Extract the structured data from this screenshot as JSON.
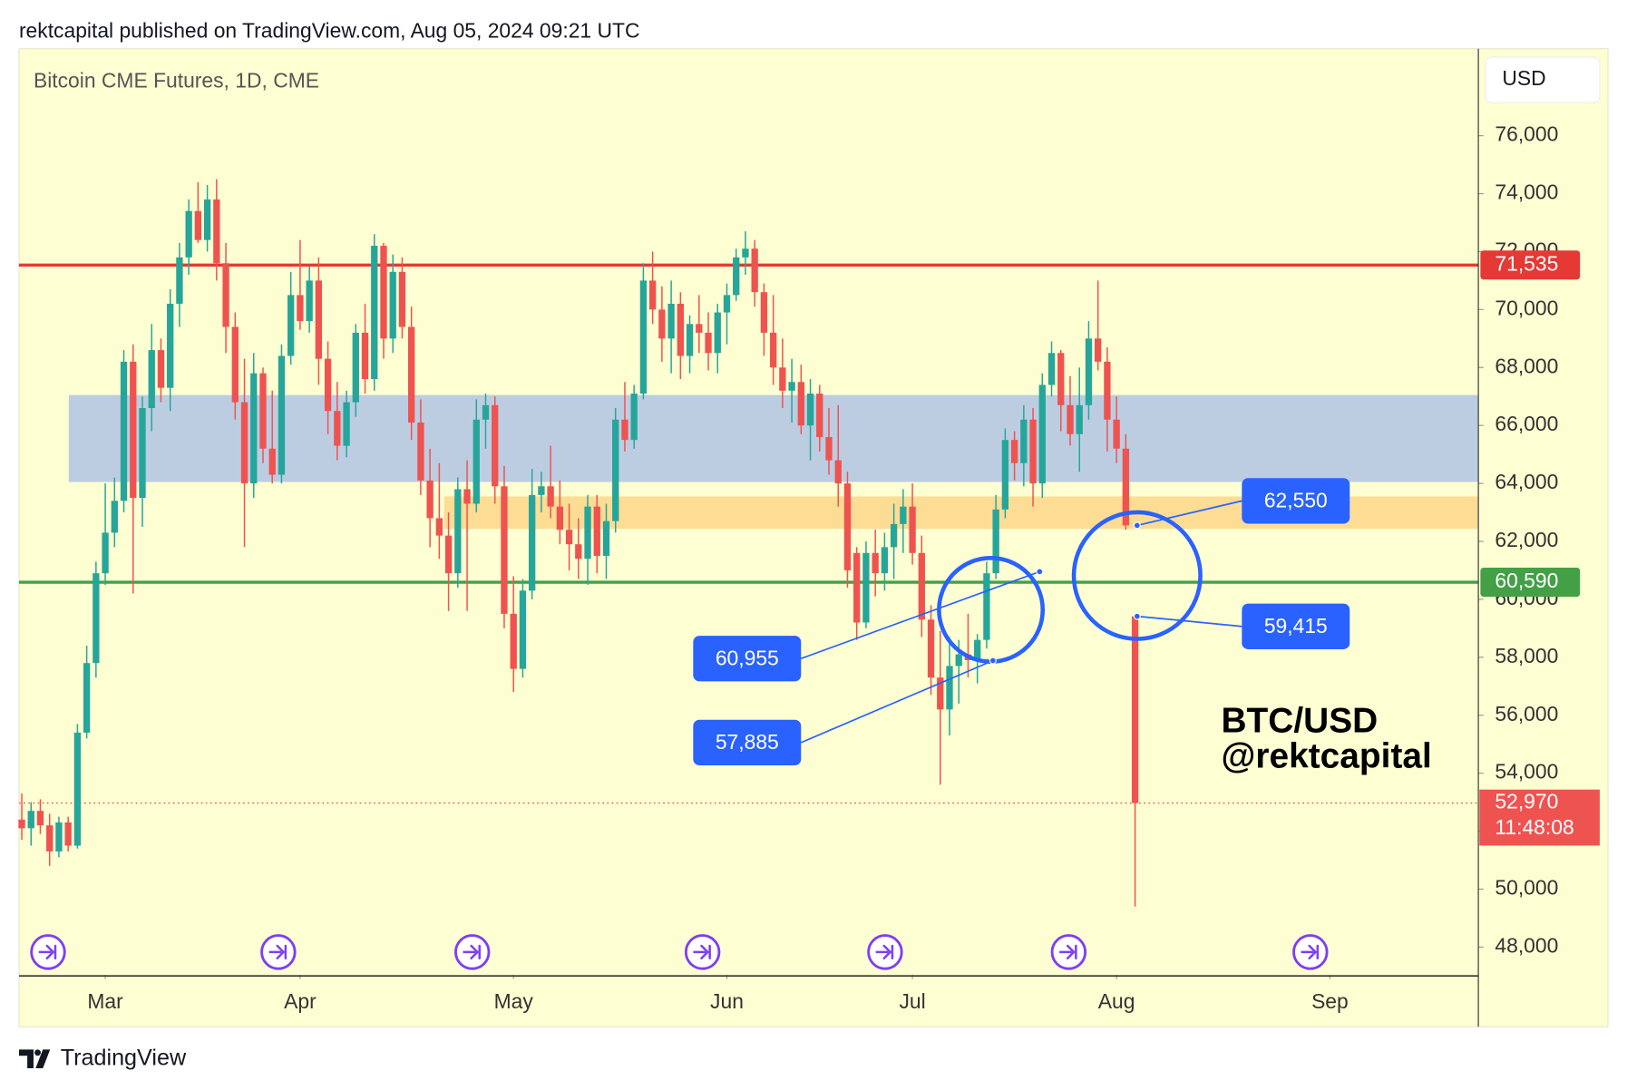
{
  "header": {
    "byline": "rektcapital published on TradingView.com, Aug 05, 2024 09:21 UTC"
  },
  "chart_data": {
    "type": "candlestick",
    "title": "Bitcoin CME Futures, 1D, CME",
    "currency": "USD",
    "x": [
      0,
      1,
      2,
      3,
      4,
      5,
      6,
      7,
      8,
      9,
      10,
      11,
      12,
      13,
      14,
      15,
      16,
      17,
      18,
      19,
      20,
      21,
      22,
      23,
      24,
      25,
      26,
      27,
      28,
      29,
      30,
      31,
      32,
      33,
      34,
      35,
      36,
      37,
      38,
      39,
      40,
      41,
      42,
      43,
      44,
      45,
      46,
      47,
      48,
      49,
      50,
      51,
      52,
      53,
      54,
      55,
      56,
      57,
      58,
      59,
      60,
      61,
      62,
      63,
      64,
      65,
      66,
      67,
      68,
      69,
      70,
      71,
      72,
      73,
      74,
      75,
      76,
      77,
      78,
      79,
      80,
      81,
      82,
      83,
      84,
      85,
      86,
      87,
      88,
      89,
      90,
      91,
      92,
      93,
      94,
      95,
      96,
      97,
      98,
      99,
      100,
      101,
      102,
      103,
      104,
      105,
      106,
      107,
      108,
      109,
      110,
      111,
      112,
      113,
      114,
      115,
      116,
      117,
      118,
      119,
      120
    ],
    "open": [
      52400,
      52100,
      52700,
      52200,
      51300,
      52300,
      51500,
      55400,
      57800,
      60900,
      62300,
      63400,
      68200,
      63500,
      66600,
      68600,
      67300,
      70200,
      71800,
      73400,
      72400,
      73800,
      71600,
      69400,
      66800,
      64000,
      67800,
      65200,
      64300,
      68400,
      70500,
      69600,
      71000,
      68300,
      66500,
      65300,
      66800,
      69200,
      67600,
      72200,
      69000,
      71300,
      69400,
      66100,
      64100,
      62800,
      62200,
      60900,
      63800,
      63300,
      66200,
      66700,
      63900,
      59500,
      57600,
      60300,
      63600,
      63900,
      63200,
      62400,
      61900,
      61400,
      63200,
      61500,
      62700,
      66200,
      65500,
      67100,
      71000,
      70000,
      69000,
      70200,
      68400,
      69500,
      69200,
      68500,
      69900,
      70500,
      71800,
      72100,
      70600,
      69200,
      68000,
      67200,
      67500,
      66000,
      67100,
      65600,
      64800,
      64000,
      61600,
      59200,
      61600,
      60900,
      61800,
      62600,
      63200,
      61600,
      59300,
      57300,
      56200,
      57700,
      58100,
      57900,
      58600,
      60900,
      63100,
      65500,
      64700,
      66200,
      64000,
      67400,
      68500,
      66700,
      65700,
      66700,
      69000,
      68200,
      66200,
      65200,
      59415
    ],
    "high": [
      53300,
      53000,
      53100,
      52600,
      52500,
      52500,
      55700,
      58400,
      61300,
      64000,
      64200,
      68600,
      68800,
      67000,
      69500,
      69000,
      70700,
      72300,
      73800,
      74400,
      74300,
      74500,
      72300,
      69900,
      68300,
      68500,
      68000,
      67200,
      68800,
      71300,
      72400,
      71500,
      71800,
      68900,
      67500,
      67200,
      69500,
      70200,
      72600,
      72300,
      71900,
      71800,
      70100,
      66900,
      65200,
      64700,
      63000,
      64200,
      64800,
      66900,
      67100,
      67000,
      64600,
      60800,
      60700,
      64500,
      64400,
      65300,
      64100,
      63300,
      62800,
      63600,
      63600,
      63300,
      66600,
      67500,
      67400,
      71600,
      72000,
      70800,
      71000,
      70600,
      69800,
      70500,
      69900,
      70200,
      70900,
      72100,
      72700,
      72400,
      70900,
      70500,
      69000,
      68300,
      68100,
      67600,
      67400,
      66600,
      66700,
      64400,
      61800,
      62000,
      62400,
      62300,
      63300,
      63800,
      64000,
      62200,
      59800,
      58900,
      58700,
      58600,
      59500,
      58800,
      61300,
      63600,
      65900,
      65800,
      66700,
      66600,
      67800,
      68900,
      68600,
      67700,
      68000,
      69600,
      71000,
      68700,
      67000,
      65700,
      59415
    ],
    "low": [
      51700,
      51500,
      51900,
      50800,
      51100,
      51300,
      51400,
      55200,
      57300,
      60500,
      61800,
      63000,
      60200,
      62500,
      65800,
      66800,
      66500,
      69400,
      71200,
      72300,
      72000,
      71000,
      68500,
      66200,
      61800,
      63500,
      64700,
      64000,
      64000,
      68100,
      69300,
      69200,
      67400,
      65700,
      64800,
      64900,
      66300,
      67100,
      67200,
      68300,
      68500,
      69000,
      65500,
      63600,
      61800,
      61400,
      59600,
      60400,
      59600,
      63000,
      65200,
      63300,
      59000,
      56800,
      57300,
      60000,
      63000,
      62800,
      61900,
      61000,
      60700,
      60500,
      60900,
      60700,
      62300,
      65100,
      65200,
      66900,
      69500,
      68200,
      67800,
      67600,
      67800,
      68500,
      67900,
      67800,
      68800,
      70300,
      71200,
      70100,
      68400,
      67400,
      66600,
      66100,
      65700,
      64800,
      65100,
      64300,
      63200,
      60400,
      58600,
      59000,
      60100,
      60300,
      60700,
      61600,
      61200,
      58700,
      56700,
      53600,
      55300,
      56400,
      57300,
      57100,
      58300,
      60700,
      62800,
      64100,
      63900,
      63200,
      63500,
      67000,
      65800,
      65300,
      64400,
      66200,
      67900,
      65100,
      64700,
      62400,
      49400
    ],
    "close": [
      52100,
      52700,
      52200,
      51300,
      52300,
      51500,
      55400,
      57800,
      60900,
      62300,
      63400,
      68200,
      63500,
      66600,
      68600,
      67300,
      70200,
      71800,
      73400,
      72400,
      73800,
      71600,
      69400,
      66800,
      64000,
      67800,
      65200,
      64300,
      68400,
      70500,
      69600,
      71000,
      68300,
      66500,
      65300,
      66800,
      69200,
      67600,
      72200,
      69000,
      71300,
      69400,
      66100,
      64100,
      62800,
      62200,
      60900,
      63800,
      63300,
      66200,
      66700,
      63900,
      59500,
      57600,
      60300,
      63600,
      63900,
      63200,
      62400,
      61900,
      61400,
      63200,
      61500,
      62700,
      66200,
      65500,
      67100,
      71000,
      70000,
      69000,
      70200,
      68400,
      69500,
      69200,
      68500,
      69900,
      70500,
      71800,
      72100,
      70600,
      69200,
      68000,
      67200,
      67500,
      66000,
      67100,
      65600,
      64800,
      64000,
      61000,
      59200,
      61600,
      60900,
      61800,
      62600,
      63200,
      61600,
      59300,
      57300,
      56200,
      57700,
      58100,
      57900,
      58600,
      60900,
      63100,
      65500,
      64700,
      66200,
      64000,
      67400,
      68500,
      66700,
      65700,
      66700,
      69000,
      68200,
      66200,
      65200,
      62550,
      52970
    ],
    "up_color": "#26a69a",
    "down_color": "#ef5350",
    "xlim": [
      -0.3,
      157
    ],
    "xticks": [
      {
        "value": 9,
        "label": "Mar"
      },
      {
        "value": 30,
        "label": "Apr"
      },
      {
        "value": 53,
        "label": "May"
      },
      {
        "value": 76,
        "label": "Jun"
      },
      {
        "value": 96,
        "label": "Jul"
      },
      {
        "value": 118,
        "label": "Aug"
      },
      {
        "value": 141,
        "label": "Sep"
      }
    ],
    "ylim": [
      47040,
      79000
    ],
    "yticks": [
      {
        "value": 48000,
        "label": "48,000"
      },
      {
        "value": 50000,
        "label": "50,000"
      },
      {
        "value": 52000,
        "label": "52,000"
      },
      {
        "value": 54000,
        "label": "54,000"
      },
      {
        "value": 56000,
        "label": "56,000"
      },
      {
        "value": 58000,
        "label": "58,000"
      },
      {
        "value": 60000,
        "label": "60,000"
      },
      {
        "value": 62000,
        "label": "62,000"
      },
      {
        "value": 64000,
        "label": "64,000"
      },
      {
        "value": 66000,
        "label": "66,000"
      },
      {
        "value": 68000,
        "label": "68,000"
      },
      {
        "value": 70000,
        "label": "70,000"
      },
      {
        "value": 72000,
        "label": "72,000"
      },
      {
        "value": 74000,
        "label": "74,000"
      },
      {
        "value": 76000,
        "label": "76,000"
      }
    ],
    "grid": false,
    "levels": [
      {
        "value": 71535,
        "label": "71,535",
        "color": "#e53935"
      },
      {
        "value": 60590,
        "label": "60,590",
        "color": "#43a047"
      }
    ],
    "zones": [
      {
        "from": 64050,
        "to": 67050,
        "color": "#bccde2"
      },
      {
        "from": 62430,
        "to": 63550,
        "color": "#fddc94"
      }
    ],
    "last_price": {
      "value": 52970,
      "label": "52,970",
      "countdown": "11:48:08",
      "color": "#ef5350"
    },
    "callouts": [
      {
        "value": 62550,
        "label": "62,550"
      },
      {
        "value": 59415,
        "label": "59,415"
      },
      {
        "value": 60955,
        "label": "60,955"
      },
      {
        "value": 57885,
        "label": "57,885"
      }
    ],
    "callout_color": "#2962ff",
    "watermark": [
      "BTC/USD",
      "@rektcapital"
    ]
  },
  "footer": {
    "brand": "TradingView"
  }
}
